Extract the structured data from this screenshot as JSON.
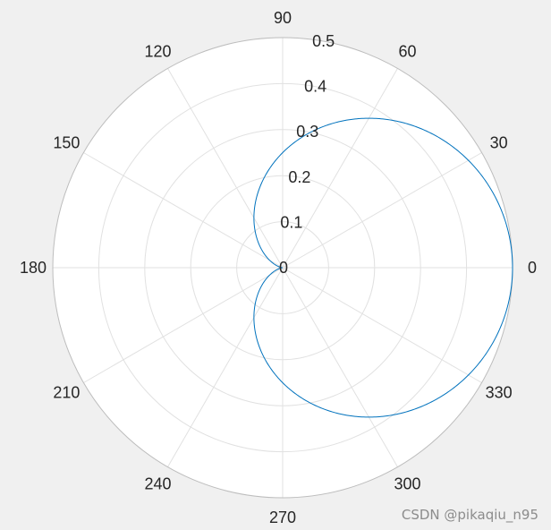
{
  "chart_data": {
    "type": "polar-line",
    "theta_tick_labels": [
      "0",
      "30",
      "60",
      "90",
      "120",
      "150",
      "180",
      "210",
      "240",
      "270",
      "300",
      "330"
    ],
    "theta_ticks_deg": [
      0,
      30,
      60,
      90,
      120,
      150,
      180,
      210,
      240,
      270,
      300,
      330
    ],
    "r_ticks": [
      0,
      0.1,
      0.2,
      0.3,
      0.4,
      0.5
    ],
    "r_tick_labels": [
      "0",
      "0.1",
      "0.2",
      "0.3",
      "0.4",
      "0.5"
    ],
    "rlim": [
      0,
      0.5
    ],
    "grid": true,
    "series": [
      {
        "equation": "r = 0.25 * (1 + cos(theta))",
        "color": "#0072bd",
        "theta_deg": [
          0,
          30,
          60,
          90,
          120,
          150,
          180,
          210,
          240,
          270,
          300,
          330,
          360
        ],
        "r": [
          0.5,
          0.467,
          0.375,
          0.25,
          0.125,
          0.033,
          0,
          0.033,
          0.125,
          0.25,
          0.375,
          0.467,
          0.5
        ]
      }
    ]
  },
  "colors": {
    "background": "#f0f0f0",
    "plot_area": "#ffffff",
    "grid": "#e1e1e1",
    "outer_ring": "#bdbdbd",
    "text": "#262626",
    "series": "#0072bd"
  },
  "watermark": "CSDN @pikaqiu_n95"
}
